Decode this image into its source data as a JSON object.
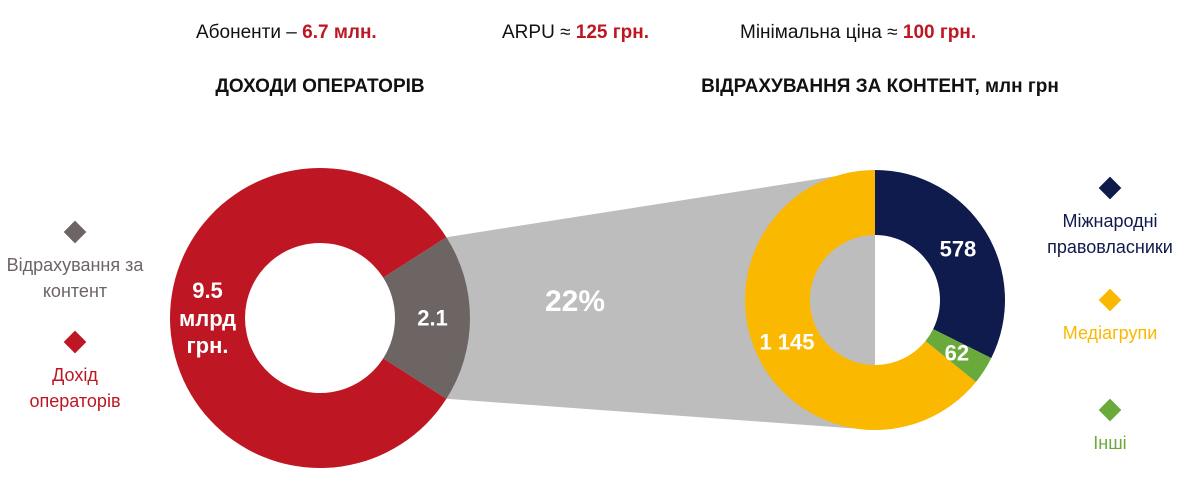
{
  "header": [
    {
      "label": "Абоненти –",
      "value": "6.7 млн."
    },
    {
      "label": "ARPU ≈",
      "value": "125 грн."
    },
    {
      "label": "Мінімальна ціна ≈",
      "value": "100 грн."
    }
  ],
  "chart_data": [
    {
      "type": "donut",
      "title": "ДОХОДИ ОПЕРАТОРІВ",
      "categories": [
        "Відрахування за контент",
        "Дохід операторів"
      ],
      "values": [
        2.1,
        9.5
      ],
      "value_labels": [
        "2.1",
        "9.5 млрд грн."
      ],
      "colors": [
        "#6d6464",
        "#be1622"
      ],
      "annotation": "22%",
      "legend": "left"
    },
    {
      "type": "donut",
      "title": "ВІДРАХУВАННЯ ЗА КОНТЕНТ, млн грн",
      "categories": [
        "Міжнародні правовласники",
        "Медіагрупи",
        "Інші"
      ],
      "values": [
        578,
        1145,
        62
      ],
      "value_labels": [
        "578",
        "1 145",
        "62"
      ],
      "colors": [
        "#0f1b4c",
        "#fbb800",
        "#6aaa3b"
      ],
      "legend": "right"
    }
  ]
}
